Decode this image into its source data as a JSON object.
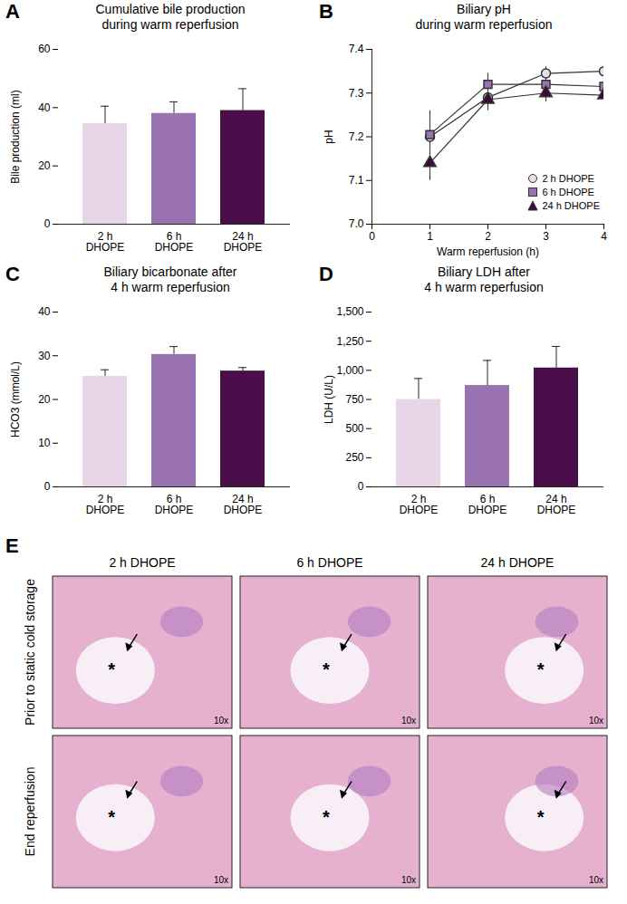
{
  "chart_data": [
    {
      "panel": "A",
      "type": "bar",
      "title": "Cumulative bile production\nduring warm reperfusion",
      "categories": [
        "2 h DHOPE",
        "6 h DHOPE",
        "24 h DHOPE"
      ],
      "values": [
        34.5,
        38,
        39
      ],
      "errors": [
        6,
        4,
        7.5
      ],
      "colors": [
        "#e8d6e8",
        "#9b73b0",
        "#4a0f4a"
      ],
      "ylabel": "Bile production (ml)",
      "ylim": [
        0,
        60
      ],
      "yticks": [
        0,
        20,
        40,
        60
      ]
    },
    {
      "panel": "B",
      "type": "line",
      "title": "Biliary pH\nduring warm reperfusion",
      "x": [
        1,
        2,
        3,
        4
      ],
      "xlim": [
        0,
        4
      ],
      "xticks": [
        0,
        1,
        2,
        3,
        4
      ],
      "xlabel": "Warm reperfusion (h)",
      "ylabel": "pH",
      "ylim": [
        7.0,
        7.4
      ],
      "yticks": [
        {
          "value": 7.0,
          "label": "7.0"
        },
        7.1,
        7.2,
        7.3,
        7.4
      ],
      "legend": "lower right",
      "series": [
        {
          "name": "2 h DHOPE",
          "color": "#ecdcec",
          "marker": "circle",
          "values": [
            7.2,
            7.29,
            7.345,
            7.35
          ],
          "errors": [
            0.06,
            0.015,
            0.015,
            0.01
          ]
        },
        {
          "name": "6 h DHOPE",
          "color": "#9b73b0",
          "marker": "square",
          "values": [
            7.205,
            7.32,
            7.32,
            7.315
          ],
          "errors": [
            0.05,
            0.025,
            0.03,
            0.03
          ]
        },
        {
          "name": "24 h DHOPE",
          "color": "#3d0a3d",
          "marker": "triangle",
          "values": [
            7.14,
            7.285,
            7.3,
            7.295
          ],
          "errors": [
            0.04,
            0.025,
            0.02,
            0.025
          ]
        }
      ]
    },
    {
      "panel": "C",
      "type": "bar",
      "title": "Biliary bicarbonate after\n4 h warm reperfusion",
      "categories": [
        "2 h DHOPE",
        "6 h DHOPE",
        "24 h DHOPE"
      ],
      "values": [
        25.3,
        30.3,
        26.5
      ],
      "errors": [
        1.5,
        1.8,
        0.8
      ],
      "colors": [
        "#e8d6e8",
        "#9b73b0",
        "#4a0f4a"
      ],
      "ylabel": "HCO3 (mmol/L)",
      "ylim": [
        0,
        40
      ],
      "yticks": [
        0,
        10,
        20,
        30,
        40
      ]
    },
    {
      "panel": "D",
      "type": "bar",
      "title": "Biliary LDH after\n4 h warm reperfusion",
      "categories": [
        "2 h DHOPE",
        "6 h DHOPE",
        "24 h DHOPE"
      ],
      "values": [
        750,
        870,
        1020
      ],
      "errors": [
        180,
        215,
        185
      ],
      "colors": [
        "#e8d6e8",
        "#9b73b0",
        "#4a0f4a"
      ],
      "ylabel": "LDH (U/L)",
      "ylim": [
        0,
        1500
      ],
      "yticks": [
        0,
        250,
        500,
        750,
        {
          "value": 1000,
          "label": "1,000"
        },
        {
          "value": 1250,
          "label": "1,250"
        },
        {
          "value": 1500,
          "label": "1,500"
        }
      ]
    }
  ],
  "panel_e": {
    "panel": "E",
    "columns": [
      "2 h DHOPE",
      "6 h DHOPE",
      "24 h DHOPE"
    ],
    "rows": [
      "Prior to static cold storage",
      "End reperfusion"
    ],
    "magnification": "10x",
    "lumen_mark": "*"
  }
}
